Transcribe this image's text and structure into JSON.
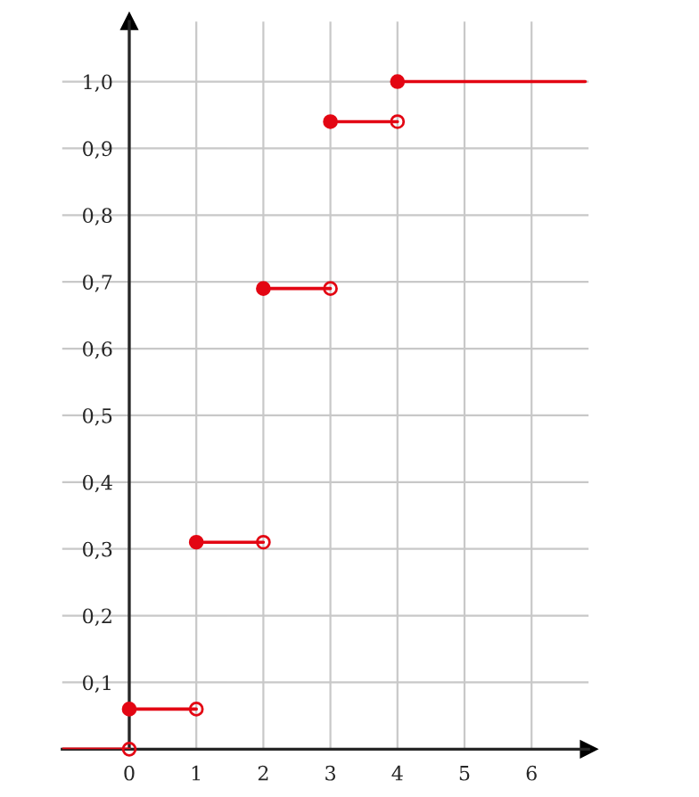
{
  "chart_data": {
    "type": "step",
    "x": [
      -1,
      0,
      1,
      2,
      3,
      4,
      6.8
    ],
    "series": [
      {
        "color": "#e30613",
        "values": [
          0,
          0.06,
          0.31,
          0.69,
          0.94,
          1,
          1
        ]
      },
      {
        "type": "scatter",
        "x": [
          0,
          1,
          2,
          3,
          4
        ],
        "color": "#e30613",
        "values": [
          0,
          0.06,
          0.31,
          0.69,
          0.94
        ]
      }
    ],
    "xlim": [
      -1,
      6.85
    ],
    "ylim": [
      0,
      1.09
    ],
    "xticks": [
      0,
      1,
      2,
      3,
      4,
      5,
      6
    ],
    "yticks": [
      {
        "value": 0.1,
        "label": "0,1"
      },
      {
        "value": 0.2,
        "label": "0,2"
      },
      {
        "value": 0.3,
        "label": "0,3"
      },
      {
        "value": 0.4,
        "label": "0,4"
      },
      {
        "value": 0.5,
        "label": "0,5"
      },
      {
        "value": 0.6,
        "label": "0,6"
      },
      {
        "value": 0.7,
        "label": "0,7"
      },
      {
        "value": 0.8,
        "label": "0,8"
      },
      {
        "value": 0.9,
        "label": "0,9"
      },
      {
        "value": 1.0,
        "label": "1,0"
      }
    ],
    "grid": true,
    "marker": "circle"
  }
}
